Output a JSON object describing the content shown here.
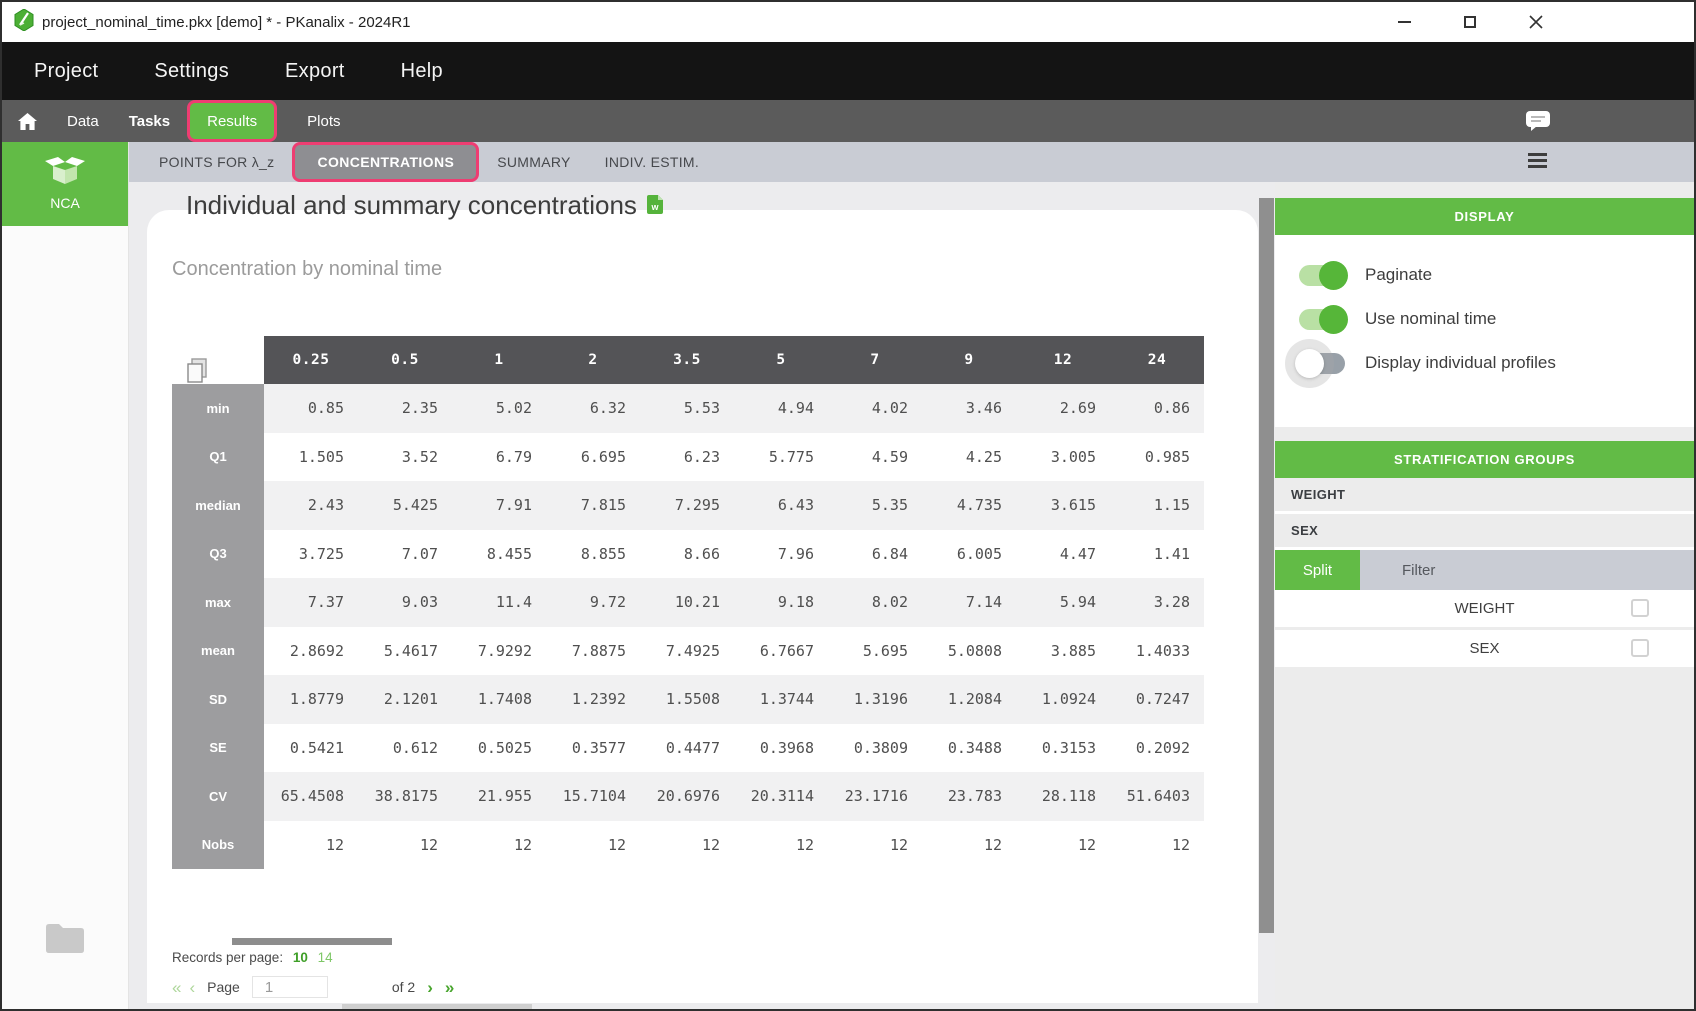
{
  "titlebar": {
    "title": "project_nominal_time.pkx [demo] * - PKanalix - 2024R1",
    "app_icon": "pkanalix-logo-icon"
  },
  "menubar": {
    "items": [
      "Project",
      "Settings",
      "Export",
      "Help"
    ]
  },
  "navbar": {
    "home_icon": "home-icon",
    "items": [
      {
        "label": "Data",
        "active": false
      },
      {
        "label": "Tasks",
        "active": false
      },
      {
        "label": "Results",
        "active": true
      },
      {
        "label": "Plots",
        "active": false
      }
    ],
    "comment_icon": "comment-icon"
  },
  "sidebar": {
    "nca_label": "NCA",
    "nca_icon": "open-box-icon",
    "folder_icon": "folder-icon"
  },
  "subtabs": {
    "items": [
      {
        "label": "POINTS FOR λ_z",
        "active": false
      },
      {
        "label": "CONCENTRATIONS",
        "active": true
      },
      {
        "label": "SUMMARY",
        "active": false
      },
      {
        "label": "INDIV. ESTIM.",
        "active": false
      }
    ],
    "menu_icon": "hamburger-icon"
  },
  "main": {
    "title": "Individual and summary concentrations",
    "doc_icon": "word-export-icon",
    "subtitle": "Concentration by nominal time",
    "copy_icon": "copy-table-icon",
    "pagination": {
      "records_label": "Records per page:",
      "options": [
        {
          "label": "10",
          "active": true
        },
        {
          "label": "14",
          "active": false
        }
      ],
      "first": "«",
      "prev": "‹",
      "page_label": "Page",
      "page_value": "1",
      "of_label": "of 2",
      "next": "›",
      "last": "»"
    }
  },
  "table": {
    "columns": [
      "0.25",
      "0.5",
      "1",
      "2",
      "3.5",
      "5",
      "7",
      "9",
      "12",
      "24"
    ],
    "rows": [
      {
        "label": "min",
        "values": [
          "0.85",
          "2.35",
          "5.02",
          "6.32",
          "5.53",
          "4.94",
          "4.02",
          "3.46",
          "2.69",
          "0.86"
        ]
      },
      {
        "label": "Q1",
        "values": [
          "1.505",
          "3.52",
          "6.79",
          "6.695",
          "6.23",
          "5.775",
          "4.59",
          "4.25",
          "3.005",
          "0.985"
        ]
      },
      {
        "label": "median",
        "values": [
          "2.43",
          "5.425",
          "7.91",
          "7.815",
          "7.295",
          "6.43",
          "5.35",
          "4.735",
          "3.615",
          "1.15"
        ]
      },
      {
        "label": "Q3",
        "values": [
          "3.725",
          "7.07",
          "8.455",
          "8.855",
          "8.66",
          "7.96",
          "6.84",
          "6.005",
          "4.47",
          "1.41"
        ]
      },
      {
        "label": "max",
        "values": [
          "7.37",
          "9.03",
          "11.4",
          "9.72",
          "10.21",
          "9.18",
          "8.02",
          "7.14",
          "5.94",
          "3.28"
        ]
      },
      {
        "label": "mean",
        "values": [
          "2.8692",
          "5.4617",
          "7.9292",
          "7.8875",
          "7.4925",
          "6.7667",
          "5.695",
          "5.0808",
          "3.885",
          "1.4033"
        ]
      },
      {
        "label": "SD",
        "values": [
          "1.8779",
          "2.1201",
          "1.7408",
          "1.2392",
          "1.5508",
          "1.3744",
          "1.3196",
          "1.2084",
          "1.0924",
          "0.7247"
        ]
      },
      {
        "label": "SE",
        "values": [
          "0.5421",
          "0.612",
          "0.5025",
          "0.3577",
          "0.4477",
          "0.3968",
          "0.3809",
          "0.3488",
          "0.3153",
          "0.2092"
        ]
      },
      {
        "label": "CV",
        "values": [
          "65.4508",
          "38.8175",
          "21.955",
          "15.7104",
          "20.6976",
          "20.3114",
          "23.1716",
          "23.783",
          "28.118",
          "51.6403"
        ]
      },
      {
        "label": "Nobs",
        "values": [
          "12",
          "12",
          "12",
          "12",
          "12",
          "12",
          "12",
          "12",
          "12",
          "12"
        ]
      }
    ]
  },
  "right_panel": {
    "display": {
      "title": "DISPLAY",
      "toggles": [
        {
          "label": "Paginate",
          "on": true
        },
        {
          "label": "Use nominal time",
          "on": true
        },
        {
          "label": "Display individual profiles",
          "on": false
        }
      ]
    },
    "stratification": {
      "title": "STRATIFICATION GROUPS",
      "groups": [
        "WEIGHT",
        "SEX"
      ],
      "tabs": [
        {
          "label": "Split",
          "active": true
        },
        {
          "label": "Filter",
          "active": false
        }
      ],
      "covariates": [
        {
          "label": "WEIGHT",
          "checked": false
        },
        {
          "label": "SEX",
          "checked": false
        }
      ]
    }
  },
  "colors": {
    "accent_green": "#62bb46",
    "toggle_green": "#56b639",
    "highlight_pink": "#ee3d72",
    "table_header_gray": "#545457",
    "row_label_gray": "#9d9d9f"
  }
}
